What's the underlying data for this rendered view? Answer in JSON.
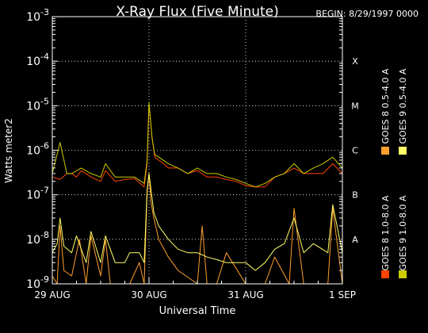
{
  "chart_data": {
    "type": "line",
    "title": "X-Ray Flux (Five Minute)",
    "begin_label": "BEGIN: 8/29/1997 0000",
    "xlabel": "Universal Time",
    "ylabel": "Watts meter^2",
    "ylabel_display": "Watts meter2",
    "y_scale": "log",
    "ylim": [
      1e-09,
      0.001
    ],
    "x_unit": "days since begin",
    "xlim": [
      0,
      3
    ],
    "x_ticks": [
      {
        "value": 0,
        "label": "29 AUG"
      },
      {
        "value": 1,
        "label": "30 AUG"
      },
      {
        "value": 2,
        "label": "31 AUG"
      },
      {
        "value": 3,
        "label": "1 SEP"
      }
    ],
    "y_ticks": [
      {
        "exp": -9,
        "base": "10",
        "sup": "-9"
      },
      {
        "exp": -8,
        "base": "10",
        "sup": "-8"
      },
      {
        "exp": -7,
        "base": "10",
        "sup": "-7"
      },
      {
        "exp": -6,
        "base": "10",
        "sup": "-6"
      },
      {
        "exp": -5,
        "base": "10",
        "sup": "-5"
      },
      {
        "exp": -4,
        "base": "10",
        "sup": "-4"
      },
      {
        "exp": -3,
        "base": "10",
        "sup": "-3"
      }
    ],
    "flare_classes": [
      {
        "label": "A",
        "exp": -8
      },
      {
        "label": "B",
        "exp": -7
      },
      {
        "label": "C",
        "exp": -6
      },
      {
        "label": "M",
        "exp": -5
      },
      {
        "label": "X",
        "exp": -4
      }
    ],
    "grid": true,
    "legend_position": "right",
    "legend": [
      {
        "name": "GOES 8 0.5-4.0 A",
        "color": "#ff9f2e"
      },
      {
        "name": "GOES 9 0.5-4.0 A",
        "color": "#ffff66"
      },
      {
        "name": "GOES 8 1.0-8.0 A",
        "color": "#ff4400"
      },
      {
        "name": "GOES 9 1.0-8.0 A",
        "color": "#cccc00"
      }
    ],
    "series": [
      {
        "name": "GOES 8 1.0-8.0 A",
        "color": "#ff4400",
        "x": [
          0,
          0.08,
          0.15,
          0.2,
          0.25,
          0.3,
          0.4,
          0.5,
          0.55,
          0.65,
          0.75,
          0.85,
          0.95,
          0.98,
          1.0,
          1.03,
          1.06,
          1.1,
          1.15,
          1.2,
          1.3,
          1.4,
          1.5,
          1.6,
          1.7,
          1.8,
          1.9,
          2.0,
          2.1,
          2.2,
          2.3,
          2.4,
          2.5,
          2.6,
          2.7,
          2.8,
          2.9,
          3.0
        ],
        "y": [
          2.5e-07,
          2.2e-07,
          3e-07,
          3e-07,
          2.5e-07,
          3.5e-07,
          2.5e-07,
          2e-07,
          3.5e-07,
          2e-07,
          2.2e-07,
          2.3e-07,
          1.5e-07,
          5e-07,
          1.1e-05,
          2e-06,
          7e-07,
          6e-07,
          5e-07,
          4e-07,
          4e-07,
          3e-07,
          3.5e-07,
          2.5e-07,
          2.5e-07,
          2.2e-07,
          2e-07,
          1.6e-07,
          1.5e-07,
          1.5e-07,
          2.5e-07,
          3e-07,
          4e-07,
          3e-07,
          3e-07,
          3e-07,
          5e-07,
          3e-07
        ]
      },
      {
        "name": "GOES 8 0.5-4.0 A",
        "color": "#ff9f2e",
        "x": [
          0,
          0.05,
          0.08,
          0.12,
          0.2,
          0.28,
          0.35,
          0.4,
          0.5,
          0.55,
          0.6,
          0.7,
          0.8,
          0.9,
          0.95,
          0.98,
          1.0,
          1.02,
          1.05,
          1.1,
          1.2,
          1.3,
          1.5,
          1.55,
          1.6,
          1.7,
          1.8,
          2.0,
          2.2,
          2.3,
          2.45,
          2.5,
          2.6,
          2.7,
          2.85,
          2.9,
          3.0
        ],
        "y": [
          1.5e-09,
          1e-09,
          2e-08,
          2e-09,
          1.5e-09,
          1e-08,
          1e-09,
          1.2e-08,
          1.5e-09,
          1e-08,
          1e-09,
          1e-09,
          1e-09,
          3e-09,
          1e-09,
          1.1e-07,
          3e-07,
          7e-08,
          3e-08,
          1e-08,
          4e-09,
          2e-09,
          1e-09,
          2e-08,
          1e-09,
          1e-09,
          5e-09,
          1e-09,
          1e-09,
          4e-09,
          1e-09,
          5e-08,
          1e-09,
          1e-09,
          1e-09,
          5e-08,
          1e-09
        ]
      },
      {
        "name": "GOES 9 1.0-8.0 A",
        "color": "#cccc00",
        "x": [
          0,
          0.08,
          0.15,
          0.2,
          0.3,
          0.4,
          0.5,
          0.55,
          0.65,
          0.75,
          0.85,
          0.95,
          0.98,
          1.0,
          1.03,
          1.06,
          1.1,
          1.2,
          1.3,
          1.4,
          1.5,
          1.6,
          1.7,
          1.8,
          1.9,
          2.0,
          2.1,
          2.2,
          2.3,
          2.4,
          2.5,
          2.6,
          2.7,
          2.8,
          2.9,
          3.0
        ],
        "y": [
          3e-07,
          1.5e-06,
          3e-07,
          3e-07,
          4e-07,
          3e-07,
          2.5e-07,
          5e-07,
          2.5e-07,
          2.5e-07,
          2.5e-07,
          1.8e-07,
          6e-07,
          1.2e-05,
          2e-06,
          8e-07,
          7e-07,
          5e-07,
          4e-07,
          3e-07,
          4e-07,
          3e-07,
          3e-07,
          2.5e-07,
          2.2e-07,
          1.8e-07,
          1.5e-07,
          1.8e-07,
          2.5e-07,
          3e-07,
          5e-07,
          3e-07,
          4e-07,
          5e-07,
          7e-07,
          4e-07
        ]
      },
      {
        "name": "GOES 9 0.5-4.0 A",
        "color": "#ffff66",
        "x": [
          0,
          0.05,
          0.08,
          0.12,
          0.2,
          0.25,
          0.35,
          0.4,
          0.5,
          0.55,
          0.65,
          0.75,
          0.8,
          0.9,
          0.95,
          0.98,
          1.0,
          1.05,
          1.1,
          1.2,
          1.3,
          1.4,
          1.5,
          1.6,
          1.7,
          1.8,
          1.9,
          2.0,
          2.1,
          2.2,
          2.3,
          2.4,
          2.5,
          2.6,
          2.7,
          2.85,
          2.9,
          3.0
        ],
        "y": [
          5e-09,
          8e-09,
          3e-08,
          7e-09,
          5e-09,
          1.2e-08,
          3e-09,
          1.5e-08,
          3e-09,
          1.2e-08,
          3e-09,
          3e-09,
          5e-09,
          5e-09,
          3e-09,
          1.3e-07,
          3e-07,
          4e-08,
          2e-08,
          1e-08,
          6e-09,
          5e-09,
          5e-09,
          4e-09,
          3.5e-09,
          3e-09,
          3e-09,
          3e-09,
          2e-09,
          3e-09,
          6e-09,
          8e-09,
          3e-08,
          5e-09,
          8e-09,
          5e-09,
          6e-08,
          5e-09
        ]
      }
    ]
  }
}
